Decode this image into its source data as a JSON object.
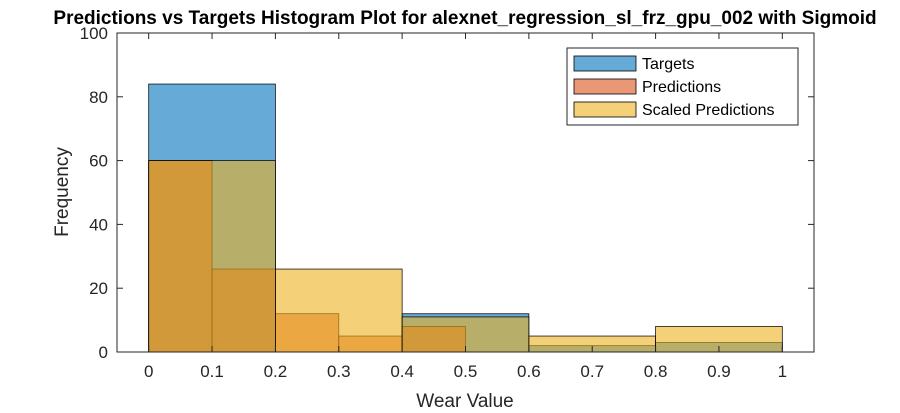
{
  "chart_data": {
    "type": "bar",
    "title": "Predictions vs Targets Histogram Plot for alexnet_regression_sl_frz_gpu_002 with Sigmoid",
    "xlabel": "Wear Value",
    "ylabel": "Frequency",
    "xlim": [
      -0.05,
      1.05
    ],
    "ylim": [
      0,
      100
    ],
    "xticks": [
      "0",
      "0.1",
      "0.2",
      "0.3",
      "0.4",
      "0.5",
      "0.6",
      "0.7",
      "0.8",
      "0.9",
      "1"
    ],
    "yticks": [
      "0",
      "20",
      "40",
      "60",
      "80",
      "100"
    ],
    "grid": false,
    "legend_position": "top-right",
    "series": [
      {
        "name": "Targets",
        "color": "#0072BD",
        "bins": [
          {
            "x0": 0.0,
            "x1": 0.2,
            "count": 84
          },
          {
            "x0": 0.2,
            "x1": 0.4,
            "count": 0
          },
          {
            "x0": 0.4,
            "x1": 0.6,
            "count": 12
          },
          {
            "x0": 0.6,
            "x1": 0.8,
            "count": 2
          },
          {
            "x0": 0.8,
            "x1": 1.0,
            "count": 3
          }
        ]
      },
      {
        "name": "Predictions",
        "color": "#D95319",
        "bins": [
          {
            "x0": 0.0,
            "x1": 0.1,
            "count": 60
          },
          {
            "x0": 0.1,
            "x1": 0.2,
            "count": 26
          },
          {
            "x0": 0.2,
            "x1": 0.3,
            "count": 12
          },
          {
            "x0": 0.3,
            "x1": 0.4,
            "count": 5
          },
          {
            "x0": 0.4,
            "x1": 0.5,
            "count": 8
          }
        ]
      },
      {
        "name": "Scaled Predictions",
        "color": "#EDB120",
        "bins": [
          {
            "x0": 0.0,
            "x1": 0.2,
            "count": 60
          },
          {
            "x0": 0.2,
            "x1": 0.4,
            "count": 26
          },
          {
            "x0": 0.4,
            "x1": 0.6,
            "count": 11
          },
          {
            "x0": 0.6,
            "x1": 0.8,
            "count": 5
          },
          {
            "x0": 0.8,
            "x1": 1.0,
            "count": 8
          }
        ]
      }
    ]
  }
}
